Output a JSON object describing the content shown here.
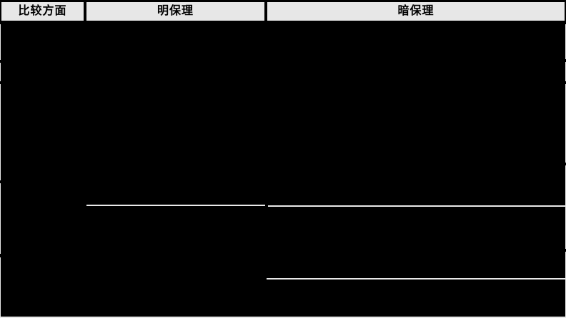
{
  "table": {
    "headers": [
      {
        "id": "comparison-aspect",
        "label": "比较方面"
      },
      {
        "id": "open-factoring",
        "label": "明保理"
      },
      {
        "id": "hidden-factoring",
        "label": "暗保理"
      }
    ],
    "body": {
      "visible_text": "",
      "note_rows_redacted": true
    }
  },
  "colors": {
    "header_bg": "#e7e7e7",
    "header_text": "#000000",
    "body_bg": "#000000",
    "divider_light": "#e9e9e9",
    "border_black": "#000000"
  }
}
